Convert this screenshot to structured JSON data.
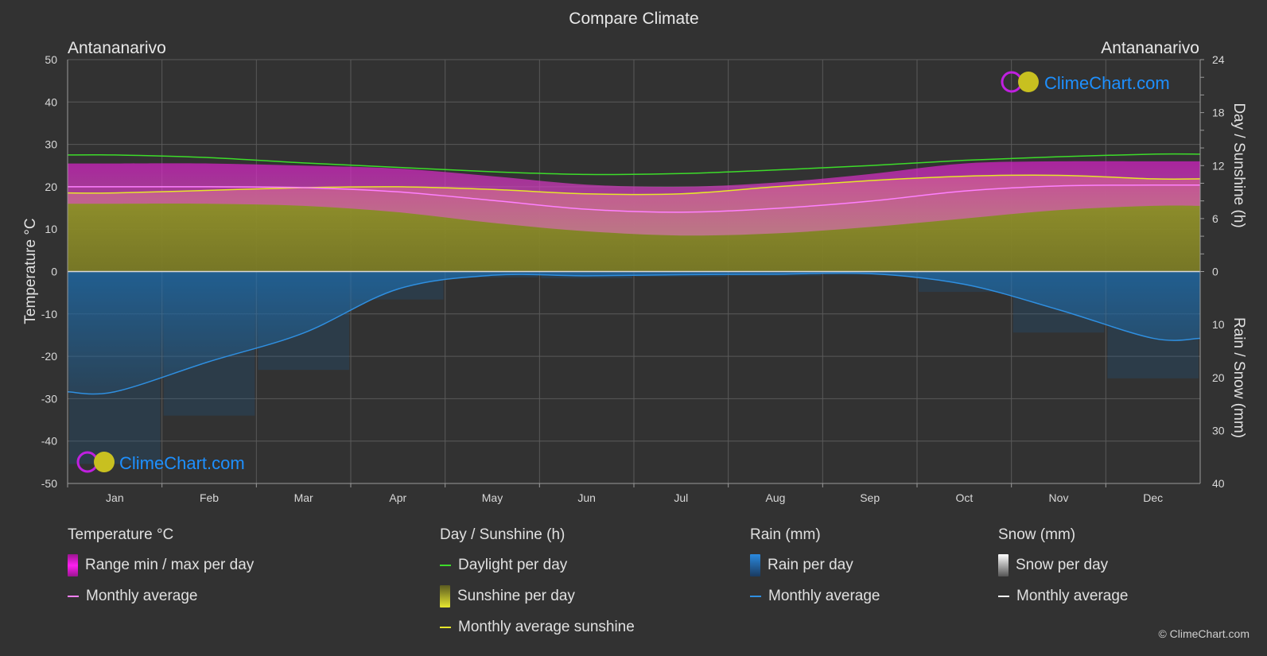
{
  "title": "Compare Climate",
  "location_left": "Antananarivo",
  "location_right": "Antananarivo",
  "logo_text": "ClimeChart.com",
  "copyright": "© ClimeChart.com",
  "colors": {
    "background": "#323232",
    "temp_range": "#e020d0",
    "temp_avg": "#ff80ff",
    "daylight": "#3ddc2a",
    "sunshine_fill": "#a8a82a",
    "sunshine_avg": "#e6e62a",
    "rain": "#1a78c8",
    "rain_avg": "#2f8fe0",
    "snow_avg": "#ffffff",
    "logo_blue": "#1e90ff"
  },
  "chart_data": {
    "type": "area",
    "months": [
      "Jan",
      "Feb",
      "Mar",
      "Apr",
      "May",
      "Jun",
      "Jul",
      "Aug",
      "Sep",
      "Oct",
      "Nov",
      "Dec"
    ],
    "left_axis": {
      "label": "Temperature °C",
      "range": [
        -50,
        50
      ],
      "ticks": [
        50,
        40,
        30,
        20,
        10,
        0,
        -10,
        -20,
        -30,
        -40,
        -50
      ]
    },
    "right_axis_top": {
      "label": "Day / Sunshine (h)",
      "range": [
        0,
        24
      ],
      "ticks": [
        24,
        18,
        12,
        6,
        0
      ]
    },
    "right_axis_bottom": {
      "label": "Rain / Snow (mm)",
      "range": [
        0,
        40
      ],
      "ticks": [
        0,
        10,
        20,
        30,
        40
      ]
    },
    "grid": true,
    "series": {
      "daylight_hours": [
        13.2,
        12.9,
        12.3,
        11.8,
        11.3,
        11.0,
        11.1,
        11.5,
        12.0,
        12.6,
        13.0,
        13.3
      ],
      "sunshine_avg_hours": [
        8.9,
        9.2,
        9.5,
        9.6,
        9.3,
        8.8,
        8.8,
        9.6,
        10.3,
        10.8,
        10.9,
        10.5
      ],
      "temp_avg_c": [
        20.0,
        20.0,
        19.8,
        18.8,
        16.8,
        14.7,
        14.0,
        14.9,
        16.6,
        19.0,
        20.2,
        20.4
      ],
      "temp_max_c": [
        25.5,
        25.5,
        25.0,
        24.3,
        22.5,
        20.5,
        20.0,
        21.0,
        23.0,
        25.5,
        26.0,
        26.0
      ],
      "temp_min_c": [
        16.0,
        16.0,
        15.5,
        14.0,
        11.5,
        9.5,
        8.5,
        9.0,
        10.5,
        12.5,
        14.5,
        15.5
      ],
      "rain_avg_mm": [
        22.7,
        17.0,
        11.6,
        3.3,
        0.7,
        0.8,
        0.6,
        0.5,
        0.4,
        2.4,
        7.2,
        12.6
      ],
      "snow_avg_mm": [
        0,
        0,
        0,
        0,
        0,
        0,
        0,
        0,
        0,
        0,
        0,
        0
      ]
    }
  },
  "legend": {
    "temperature": {
      "title": "Temperature °C",
      "range_label": "Range min / max per day",
      "avg_label": "Monthly average"
    },
    "sunshine": {
      "title": "Day / Sunshine (h)",
      "daylight_label": "Daylight per day",
      "sunshine_label": "Sunshine per day",
      "avg_label": "Monthly average sunshine"
    },
    "rain": {
      "title": "Rain (mm)",
      "rain_label": "Rain per day",
      "avg_label": "Monthly average"
    },
    "snow": {
      "title": "Snow (mm)",
      "snow_label": "Snow per day",
      "avg_label": "Monthly average"
    }
  }
}
